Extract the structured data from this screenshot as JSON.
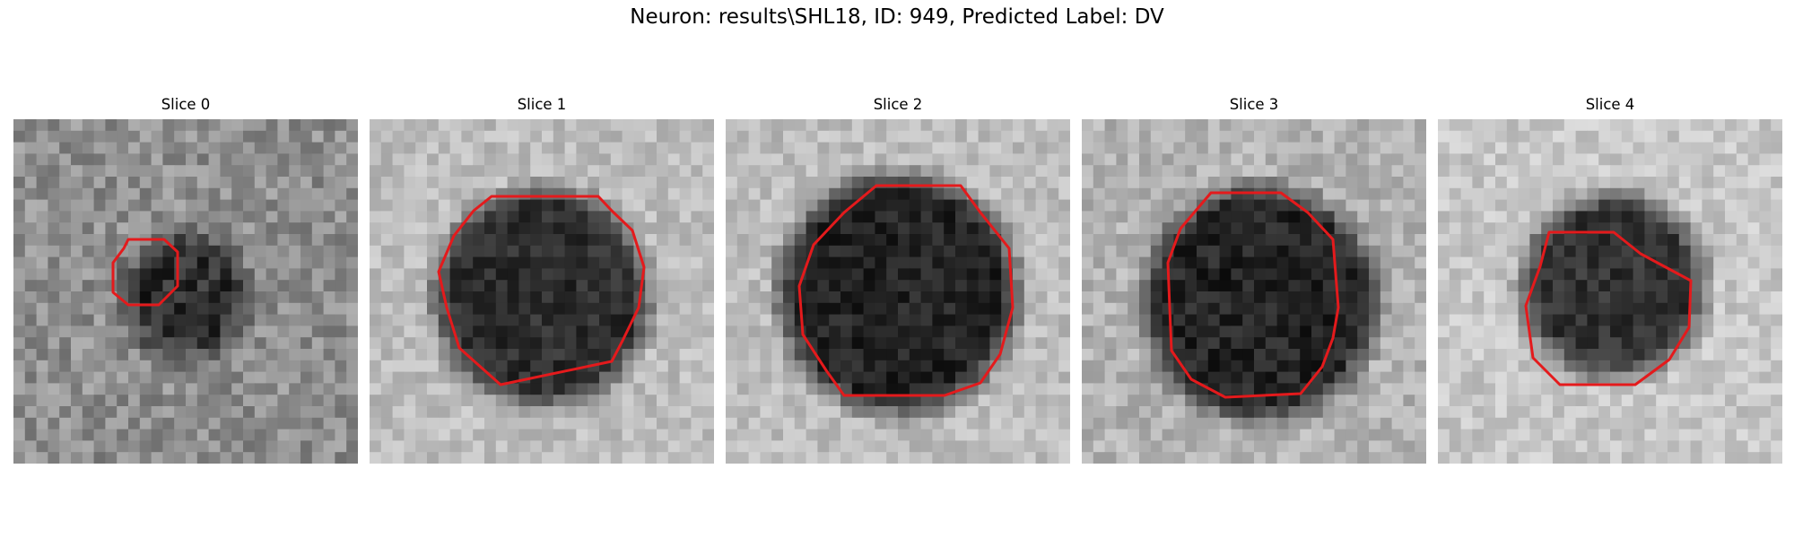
{
  "figure": {
    "title": "Neuron: results\\SHL18, ID: 949, Predicted Label: DV",
    "contour_color": "#e41a1c"
  },
  "panels": [
    {
      "title": "Slice 0"
    },
    {
      "title": "Slice 1"
    },
    {
      "title": "Slice 2"
    },
    {
      "title": "Slice 3"
    },
    {
      "title": "Slice 4"
    }
  ]
}
